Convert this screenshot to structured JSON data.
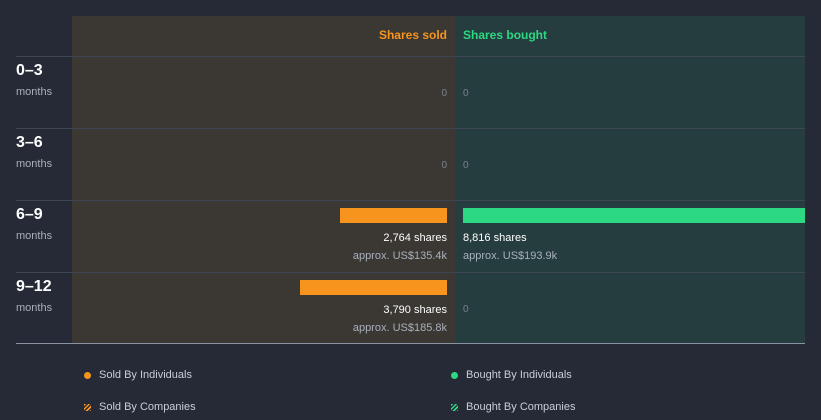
{
  "chart_data": {
    "type": "bar",
    "orientation": "diverging-horizontal",
    "columns": {
      "sold": "Shares sold",
      "bought": "Shares bought"
    },
    "unit_label": "months",
    "categories": [
      "0–3",
      "3–6",
      "6–9",
      "9–12"
    ],
    "series": [
      {
        "name": "Shares sold",
        "values": [
          0,
          0,
          2764,
          3790
        ],
        "shares_labels": [
          "0",
          "0",
          "2,764 shares",
          "3,790 shares"
        ],
        "approx_labels": [
          "",
          "",
          "approx. US$135.4k",
          "approx. US$185.8k"
        ]
      },
      {
        "name": "Shares bought",
        "values": [
          0,
          0,
          8816,
          0
        ],
        "shares_labels": [
          "0",
          "0",
          "8,816 shares",
          "0"
        ],
        "approx_labels": [
          "",
          "",
          "approx. US$193.9k",
          ""
        ]
      }
    ],
    "max_value": 8816,
    "colors": {
      "sold": "#f7941d",
      "bought": "#2dd882"
    },
    "legend": [
      {
        "label": "Sold By Individuals",
        "color": "#f7941d",
        "style": "dot"
      },
      {
        "label": "Bought By Individuals",
        "color": "#2dd882",
        "style": "dot"
      },
      {
        "label": "Sold By Companies",
        "color": "#f7941d",
        "style": "hatch"
      },
      {
        "label": "Bought By Companies",
        "color": "#2dd882",
        "style": "hatch"
      }
    ]
  }
}
